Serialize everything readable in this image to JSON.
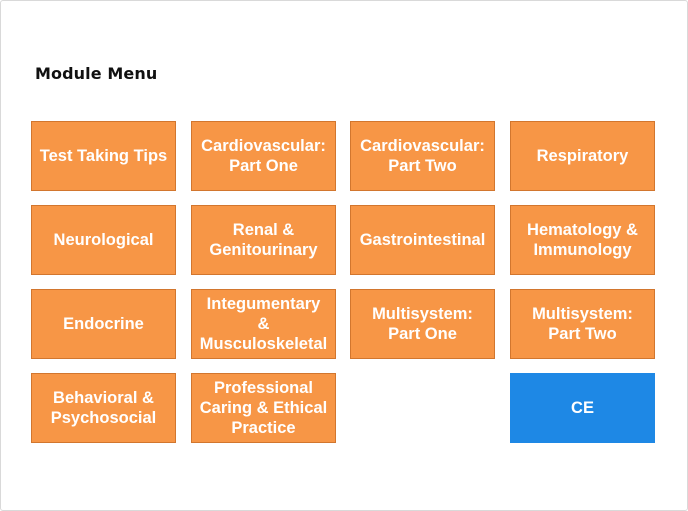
{
  "title": "Module Menu",
  "colors": {
    "tile": "#f79646",
    "tile_border": "#d2762e",
    "accent": "#1e88e5",
    "text_on_tile": "#ffffff"
  },
  "modules": [
    {
      "label": "Test Taking Tips"
    },
    {
      "label": "Cardiovascular:\nPart One"
    },
    {
      "label": "Cardiovascular:\nPart Two"
    },
    {
      "label": "Respiratory"
    },
    {
      "label": "Neurological"
    },
    {
      "label": "Renal &\nGenitourinary"
    },
    {
      "label": "Gastrointestinal"
    },
    {
      "label": "Hematology &\nImmunology"
    },
    {
      "label": "Endocrine"
    },
    {
      "label": "Integumentary\n&\nMusculoskeletal"
    },
    {
      "label": "Multisystem:\nPart One"
    },
    {
      "label": "Multisystem:\nPart Two"
    },
    {
      "label": "Behavioral &\nPsychosocial"
    },
    {
      "label": "Professional\nCaring & Ethical\nPractice"
    },
    {
      "label": "CE"
    }
  ]
}
